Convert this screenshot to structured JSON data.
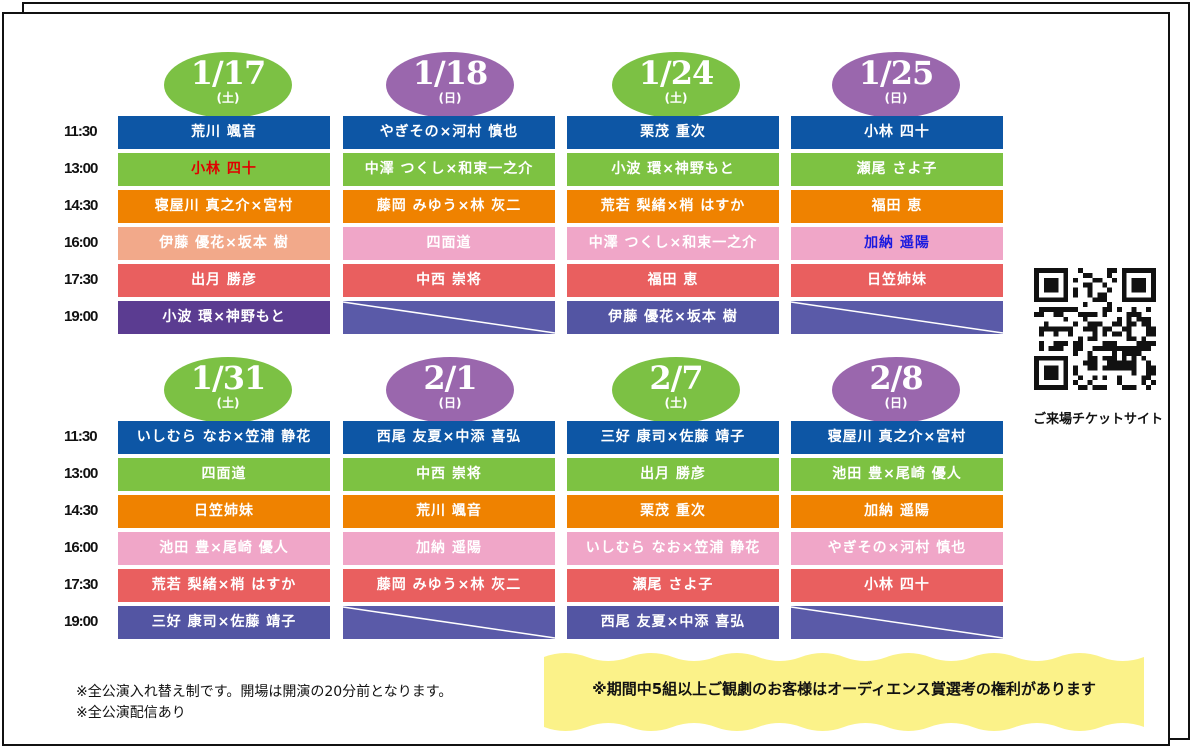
{
  "weeks": [
    {
      "days": [
        {
          "date": "1/17",
          "weekday": "(土)",
          "color": "green"
        },
        {
          "date": "1/18",
          "weekday": "(日)",
          "color": "purple"
        },
        {
          "date": "1/24",
          "weekday": "(土)",
          "color": "green"
        },
        {
          "date": "1/25",
          "weekday": "(日)",
          "color": "purple"
        }
      ],
      "times": [
        "11:30",
        "13:00",
        "14:30",
        "16:00",
        "17:30",
        "19:00"
      ],
      "rows": [
        [
          {
            "text": "荒川 颯音",
            "bg": "blue"
          },
          {
            "text": "やぎその×河村 慎也",
            "bg": "blue"
          },
          {
            "text": "栗茂 重次",
            "bg": "blue"
          },
          {
            "text": "小林 四十",
            "bg": "blue"
          }
        ],
        [
          {
            "text": "小林 四十",
            "bg": "green",
            "fg": "red"
          },
          {
            "text": "中澤 つくし×和束一之介",
            "bg": "green"
          },
          {
            "text": "小波 環×神野もと",
            "bg": "green"
          },
          {
            "text": "瀬尾 さよ子",
            "bg": "green"
          }
        ],
        [
          {
            "text": "寝屋川 真之介×宮村",
            "bg": "orange"
          },
          {
            "text": "藤岡 みゆう×林 灰二",
            "bg": "orange"
          },
          {
            "text": "荒若 梨緒×梢 はすか",
            "bg": "orange"
          },
          {
            "text": "福田 恵",
            "bg": "orange"
          }
        ],
        [
          {
            "text": "伊藤 優花×坂本 樹",
            "bg": "salmon"
          },
          {
            "text": "四面道",
            "bg": "pink"
          },
          {
            "text": "中澤 つくし×和束一之介",
            "bg": "pink"
          },
          {
            "text": "加納 遥陽",
            "bg": "pink",
            "fg": "blue"
          }
        ],
        [
          {
            "text": "出月 勝彦",
            "bg": "red"
          },
          {
            "text": "中西 崇将",
            "bg": "red"
          },
          {
            "text": "福田 恵",
            "bg": "red"
          },
          {
            "text": "日笠姉妹",
            "bg": "red"
          }
        ],
        [
          {
            "text": "小波 環×神野もと",
            "bg": "violet"
          },
          {
            "text": "",
            "bg": "empty"
          },
          {
            "text": "伊藤 優花×坂本 樹",
            "bg": "indigo"
          },
          {
            "text": "",
            "bg": "empty"
          }
        ]
      ]
    },
    {
      "days": [
        {
          "date": "1/31",
          "weekday": "(土)",
          "color": "green"
        },
        {
          "date": "2/1",
          "weekday": "(日)",
          "color": "purple"
        },
        {
          "date": "2/7",
          "weekday": "(土)",
          "color": "green"
        },
        {
          "date": "2/8",
          "weekday": "(日)",
          "color": "purple"
        }
      ],
      "times": [
        "11:30",
        "13:00",
        "14:30",
        "16:00",
        "17:30",
        "19:00"
      ],
      "rows": [
        [
          {
            "text": "いしむら なお×笠浦 静花",
            "bg": "blue"
          },
          {
            "text": "西尾 友夏×中添 喜弘",
            "bg": "blue"
          },
          {
            "text": "三好 康司×佐藤 靖子",
            "bg": "blue"
          },
          {
            "text": "寝屋川 真之介×宮村",
            "bg": "blue"
          }
        ],
        [
          {
            "text": "四面道",
            "bg": "green"
          },
          {
            "text": "中西 崇将",
            "bg": "green"
          },
          {
            "text": "出月 勝彦",
            "bg": "green"
          },
          {
            "text": "池田 豊×尾崎 優人",
            "bg": "green"
          }
        ],
        [
          {
            "text": "日笠姉妹",
            "bg": "orange"
          },
          {
            "text": "荒川 颯音",
            "bg": "orange"
          },
          {
            "text": "栗茂 重次",
            "bg": "orange"
          },
          {
            "text": "加納 遥陽",
            "bg": "orange"
          }
        ],
        [
          {
            "text": "池田 豊×尾崎 優人",
            "bg": "pink"
          },
          {
            "text": "加納 遥陽",
            "bg": "pink"
          },
          {
            "text": "いしむら なお×笠浦 静花",
            "bg": "pink"
          },
          {
            "text": "やぎその×河村 慎也",
            "bg": "pink"
          }
        ],
        [
          {
            "text": "荒若 梨緒×梢 はすか",
            "bg": "red"
          },
          {
            "text": "藤岡 みゆう×林 灰二",
            "bg": "red"
          },
          {
            "text": "瀬尾 さよ子",
            "bg": "red"
          },
          {
            "text": "小林 四十",
            "bg": "red"
          }
        ],
        [
          {
            "text": "三好 康司×佐藤 靖子",
            "bg": "indigo"
          },
          {
            "text": "",
            "bg": "empty"
          },
          {
            "text": "西尾 友夏×中添 喜弘",
            "bg": "indigo"
          },
          {
            "text": "",
            "bg": "empty"
          }
        ]
      ]
    }
  ],
  "qr": {
    "icon": "qr-code-icon",
    "caption": "ご来場チケットサイト"
  },
  "notes": [
    "※全公演入れ替え制です。開場は開演の20分前となります。",
    "※全公演配信あり"
  ],
  "banner": {
    "text": "※期間中5組以上ご観劇のお客様はオーディエンス賞選考の権利があります",
    "color": "#fbf289"
  },
  "colors": {
    "blue": "#0d56a5",
    "green": "#7dc242",
    "orange": "#ef8200",
    "salmon": "#f2a98a",
    "pink": "#f0a6c8",
    "red": "#e95f5f",
    "indigo": "#5355a3",
    "violet": "#5b3c91",
    "empty": "#5a5aa8"
  }
}
